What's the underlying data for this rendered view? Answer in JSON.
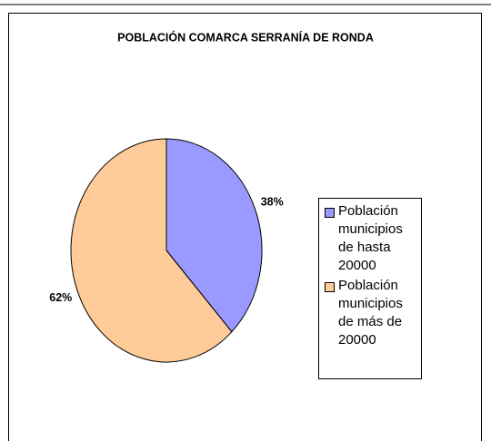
{
  "chart_data": {
    "type": "pie",
    "title": "POBLACIÓN COMARCA SERRANÍA DE RONDA",
    "categories": [
      "Población municipios de hasta 20000",
      "Población municipios de más de 20000"
    ],
    "values": [
      38,
      62
    ],
    "value_labels": [
      "38%",
      "62%"
    ],
    "colors": [
      "#9999ff",
      "#ffcc99"
    ],
    "legend": "right"
  }
}
